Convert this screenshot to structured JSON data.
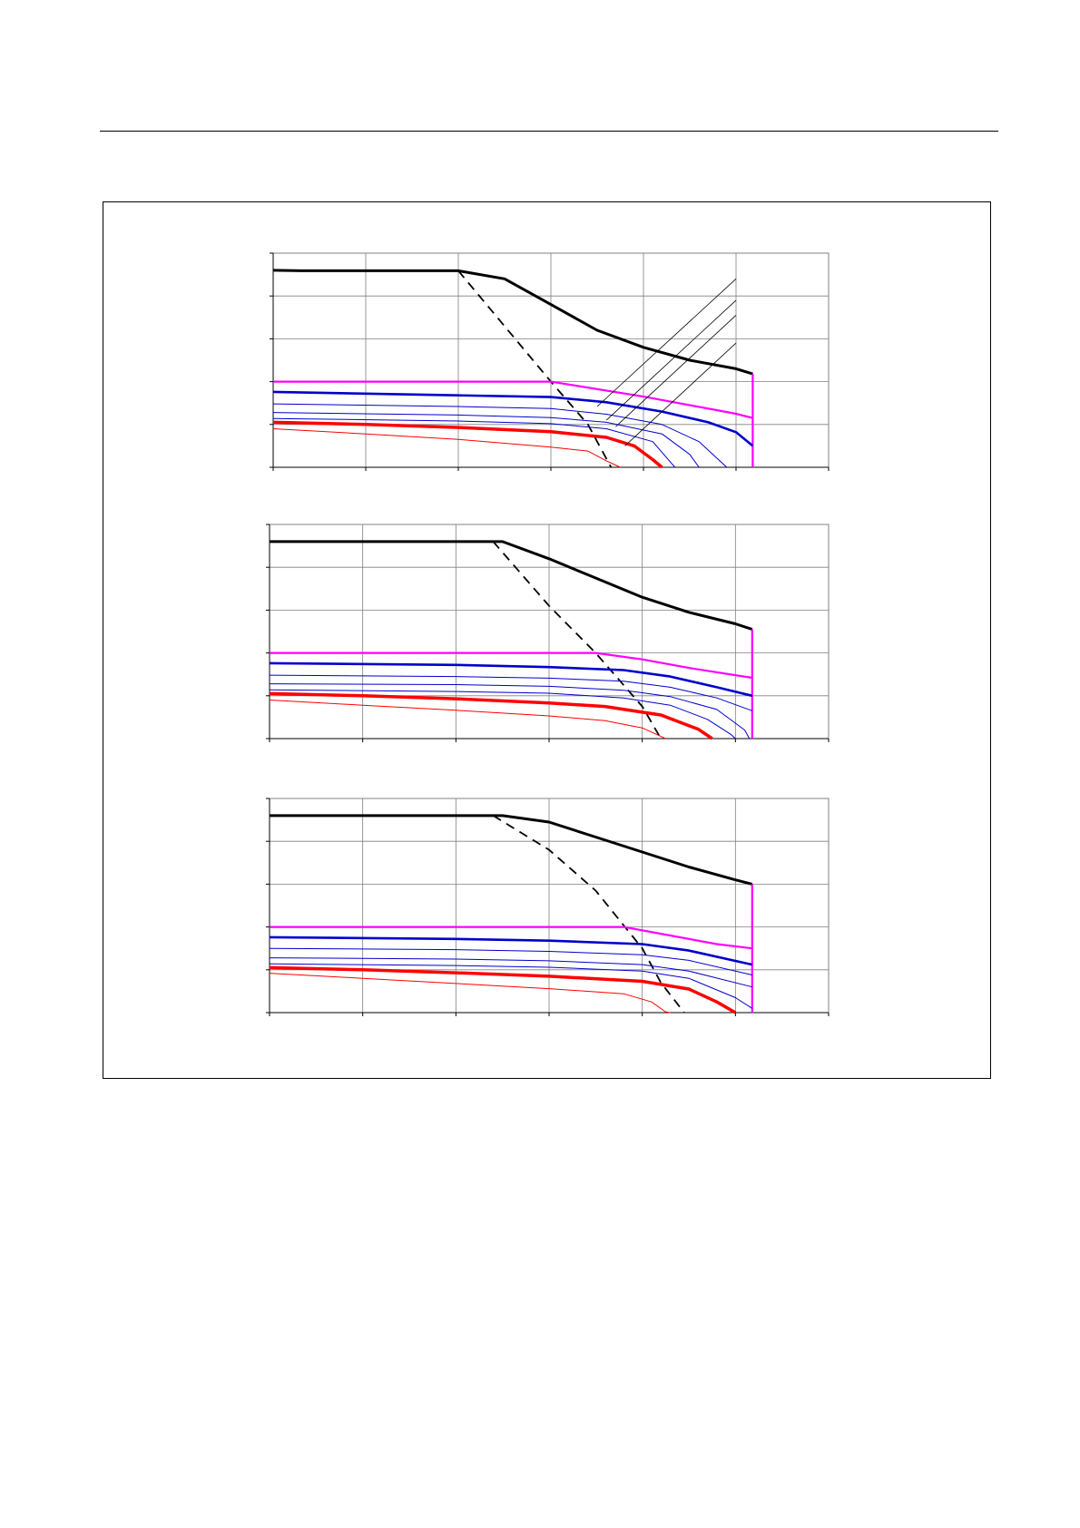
{
  "page": {
    "background": "#ffffff",
    "rule_color": "#000000"
  },
  "colors": {
    "black_curve": "#000000",
    "magenta_curve": "#ff00ff",
    "blue_curve": "#0000cc",
    "red_curve": "#ff0000",
    "grid": "#808080"
  },
  "chart_data": [
    {
      "type": "line",
      "title": "",
      "xlabel": "",
      "ylabel": "",
      "xlim": [
        0,
        6
      ],
      "ylim": [
        0,
        5
      ],
      "grid": true,
      "x_ticks": [
        0,
        1,
        2,
        3,
        4,
        5,
        6
      ],
      "y_ticks": [
        0,
        1,
        2,
        3,
        4,
        5
      ],
      "legend": "none",
      "series": [
        {
          "style": "black-thick",
          "points": [
            [
              0,
              4.6
            ],
            [
              0.3,
              4.59
            ],
            [
              2.0,
              4.59
            ],
            [
              2.5,
              4.4
            ],
            [
              3.0,
              3.8
            ],
            [
              3.5,
              3.2
            ],
            [
              4.0,
              2.8
            ],
            [
              4.5,
              2.5
            ],
            [
              5.0,
              2.3
            ],
            [
              5.18,
              2.18
            ]
          ]
        },
        {
          "style": "black-dashed",
          "points": [
            [
              2.0,
              4.59
            ],
            [
              3.0,
              2.0
            ],
            [
              3.4,
              1.0
            ],
            [
              3.65,
              0.0
            ]
          ]
        },
        {
          "style": "magenta",
          "points": [
            [
              0,
              2.0
            ],
            [
              3.0,
              2.0
            ],
            [
              4.0,
              1.65
            ],
            [
              5.0,
              1.25
            ],
            [
              5.18,
              1.15
            ]
          ]
        },
        {
          "style": "magenta-vertical",
          "points": [
            [
              5.18,
              2.18
            ],
            [
              5.18,
              0.0
            ]
          ]
        },
        {
          "style": "blue-thick",
          "points": [
            [
              0,
              1.76
            ],
            [
              2.0,
              1.68
            ],
            [
              3.0,
              1.64
            ],
            [
              3.6,
              1.52
            ],
            [
              4.2,
              1.3
            ],
            [
              4.7,
              1.05
            ],
            [
              5.0,
              0.82
            ],
            [
              5.18,
              0.5
            ]
          ]
        },
        {
          "style": "blue-thin",
          "points": [
            [
              0,
              1.48
            ],
            [
              2.0,
              1.42
            ],
            [
              3.0,
              1.37
            ],
            [
              3.6,
              1.24
            ],
            [
              4.2,
              1.0
            ],
            [
              4.6,
              0.6
            ],
            [
              4.85,
              0.1
            ],
            [
              4.9,
              0.0
            ]
          ]
        },
        {
          "style": "blue-thin",
          "points": [
            [
              0,
              1.28
            ],
            [
              2.0,
              1.22
            ],
            [
              3.0,
              1.16
            ],
            [
              3.6,
              1.05
            ],
            [
              4.2,
              0.78
            ],
            [
              4.5,
              0.3
            ],
            [
              4.6,
              0.0
            ]
          ]
        },
        {
          "style": "blue-thin",
          "points": [
            [
              0,
              1.14
            ],
            [
              2.0,
              1.08
            ],
            [
              3.0,
              1.02
            ],
            [
              3.6,
              0.9
            ],
            [
              4.1,
              0.6
            ],
            [
              4.3,
              0.1
            ],
            [
              4.34,
              0.0
            ]
          ]
        },
        {
          "style": "red-thick",
          "points": [
            [
              0,
              1.05
            ],
            [
              1.0,
              1.0
            ],
            [
              2.0,
              0.93
            ],
            [
              3.0,
              0.83
            ],
            [
              3.6,
              0.7
            ],
            [
              3.9,
              0.5
            ],
            [
              4.1,
              0.18
            ],
            [
              4.2,
              0.0
            ]
          ]
        },
        {
          "style": "red-thin",
          "points": [
            [
              0,
              0.9
            ],
            [
              1.0,
              0.78
            ],
            [
              2.0,
              0.65
            ],
            [
              3.0,
              0.47
            ],
            [
              3.4,
              0.38
            ],
            [
              3.6,
              0.15
            ],
            [
              3.75,
              0.0
            ]
          ]
        },
        {
          "style": "leader",
          "points": [
            [
              3.5,
              1.42
            ],
            [
              5.0,
              4.4
            ]
          ]
        },
        {
          "style": "leader",
          "points": [
            [
              3.6,
              1.1
            ],
            [
              5.0,
              3.9
            ]
          ]
        },
        {
          "style": "leader",
          "points": [
            [
              3.7,
              0.95
            ],
            [
              5.0,
              3.55
            ]
          ]
        },
        {
          "style": "leader",
          "points": [
            [
              3.8,
              0.5
            ],
            [
              5.0,
              2.9
            ]
          ]
        }
      ]
    },
    {
      "type": "line",
      "title": "",
      "xlabel": "",
      "ylabel": "",
      "xlim": [
        0,
        6
      ],
      "ylim": [
        0,
        5
      ],
      "grid": true,
      "x_ticks": [
        0,
        1,
        2,
        3,
        4,
        5,
        6
      ],
      "y_ticks": [
        0,
        1,
        2,
        3,
        4,
        5
      ],
      "legend": "none",
      "series": [
        {
          "style": "black-thick",
          "points": [
            [
              0,
              4.6
            ],
            [
              2.5,
              4.6
            ],
            [
              3.0,
              4.2
            ],
            [
              3.5,
              3.75
            ],
            [
              4.0,
              3.3
            ],
            [
              4.5,
              2.95
            ],
            [
              5.0,
              2.68
            ],
            [
              5.18,
              2.55
            ]
          ]
        },
        {
          "style": "black-dashed",
          "points": [
            [
              2.4,
              4.6
            ],
            [
              3.0,
              3.1
            ],
            [
              3.5,
              2.0
            ],
            [
              4.0,
              0.75
            ],
            [
              4.2,
              0.0
            ]
          ]
        },
        {
          "style": "magenta",
          "points": [
            [
              0,
              2.0
            ],
            [
              3.5,
              2.0
            ],
            [
              4.0,
              1.85
            ],
            [
              4.5,
              1.65
            ],
            [
              5.18,
              1.42
            ]
          ]
        },
        {
          "style": "magenta-vertical",
          "points": [
            [
              5.18,
              2.55
            ],
            [
              5.18,
              0.0
            ]
          ]
        },
        {
          "style": "blue-thick",
          "points": [
            [
              0,
              1.76
            ],
            [
              2.0,
              1.72
            ],
            [
              3.0,
              1.67
            ],
            [
              3.8,
              1.6
            ],
            [
              4.3,
              1.45
            ],
            [
              4.8,
              1.2
            ],
            [
              5.18,
              1.0
            ]
          ]
        },
        {
          "style": "blue-thin",
          "points": [
            [
              0,
              1.48
            ],
            [
              2.0,
              1.45
            ],
            [
              3.0,
              1.41
            ],
            [
              3.8,
              1.34
            ],
            [
              4.3,
              1.2
            ],
            [
              4.8,
              0.95
            ],
            [
              5.18,
              0.65
            ]
          ]
        },
        {
          "style": "blue-thin",
          "points": [
            [
              0,
              1.28
            ],
            [
              2.0,
              1.26
            ],
            [
              3.0,
              1.22
            ],
            [
              3.8,
              1.13
            ],
            [
              4.3,
              0.98
            ],
            [
              4.8,
              0.68
            ],
            [
              5.1,
              0.2
            ],
            [
              5.15,
              0.0
            ]
          ]
        },
        {
          "style": "blue-thin",
          "points": [
            [
              0,
              1.14
            ],
            [
              2.0,
              1.1
            ],
            [
              3.0,
              1.06
            ],
            [
              3.8,
              0.95
            ],
            [
              4.3,
              0.78
            ],
            [
              4.7,
              0.45
            ],
            [
              4.95,
              0.1
            ],
            [
              5.0,
              0.0
            ]
          ]
        },
        {
          "style": "red-thick",
          "points": [
            [
              0,
              1.05
            ],
            [
              1.0,
              1.0
            ],
            [
              2.0,
              0.93
            ],
            [
              3.0,
              0.83
            ],
            [
              3.6,
              0.75
            ],
            [
              4.2,
              0.55
            ],
            [
              4.6,
              0.22
            ],
            [
              4.75,
              0.0
            ]
          ]
        },
        {
          "style": "red-thin",
          "points": [
            [
              0,
              0.9
            ],
            [
              1.0,
              0.78
            ],
            [
              2.0,
              0.66
            ],
            [
              3.0,
              0.53
            ],
            [
              3.6,
              0.42
            ],
            [
              4.0,
              0.25
            ],
            [
              4.2,
              0.05
            ],
            [
              4.25,
              0.0
            ]
          ]
        }
      ]
    },
    {
      "type": "line",
      "title": "",
      "xlabel": "",
      "ylabel": "",
      "xlim": [
        0,
        6
      ],
      "ylim": [
        0,
        5
      ],
      "grid": true,
      "x_ticks": [
        0,
        1,
        2,
        3,
        4,
        5,
        6
      ],
      "y_ticks": [
        0,
        1,
        2,
        3,
        4,
        5
      ],
      "legend": "none",
      "series": [
        {
          "style": "black-thick",
          "points": [
            [
              0,
              4.6
            ],
            [
              2.5,
              4.6
            ],
            [
              3.0,
              4.45
            ],
            [
              3.5,
              4.1
            ],
            [
              4.0,
              3.75
            ],
            [
              4.5,
              3.4
            ],
            [
              5.0,
              3.1
            ],
            [
              5.18,
              3.0
            ]
          ]
        },
        {
          "style": "black-dashed",
          "points": [
            [
              2.4,
              4.6
            ],
            [
              3.0,
              3.8
            ],
            [
              3.5,
              2.85
            ],
            [
              4.0,
              1.5
            ],
            [
              4.2,
              0.7
            ],
            [
              4.45,
              0.0
            ]
          ]
        },
        {
          "style": "magenta",
          "points": [
            [
              0,
              2.0
            ],
            [
              3.8,
              2.0
            ],
            [
              4.3,
              1.8
            ],
            [
              4.8,
              1.6
            ],
            [
              5.18,
              1.5
            ]
          ]
        },
        {
          "style": "magenta-vertical",
          "points": [
            [
              5.18,
              3.0
            ],
            [
              5.18,
              0.0
            ]
          ]
        },
        {
          "style": "blue-thick",
          "points": [
            [
              0,
              1.76
            ],
            [
              2.0,
              1.72
            ],
            [
              3.0,
              1.68
            ],
            [
              4.0,
              1.6
            ],
            [
              4.5,
              1.45
            ],
            [
              5.18,
              1.12
            ]
          ]
        },
        {
          "style": "blue-thin",
          "points": [
            [
              0,
              1.5
            ],
            [
              2.0,
              1.47
            ],
            [
              3.0,
              1.43
            ],
            [
              4.0,
              1.35
            ],
            [
              4.5,
              1.22
            ],
            [
              5.18,
              0.88
            ]
          ]
        },
        {
          "style": "blue-thin",
          "points": [
            [
              0,
              1.28
            ],
            [
              2.0,
              1.25
            ],
            [
              3.0,
              1.21
            ],
            [
              4.0,
              1.12
            ],
            [
              4.5,
              0.97
            ],
            [
              5.18,
              0.6
            ]
          ]
        },
        {
          "style": "blue-thin",
          "points": [
            [
              0,
              1.14
            ],
            [
              2.0,
              1.1
            ],
            [
              3.0,
              1.06
            ],
            [
              4.0,
              0.97
            ],
            [
              4.5,
              0.8
            ],
            [
              5.0,
              0.35
            ],
            [
              5.18,
              0.1
            ]
          ]
        },
        {
          "style": "red-thick",
          "points": [
            [
              0,
              1.05
            ],
            [
              1.0,
              1.0
            ],
            [
              2.0,
              0.93
            ],
            [
              3.0,
              0.85
            ],
            [
              4.0,
              0.73
            ],
            [
              4.5,
              0.55
            ],
            [
              4.8,
              0.25
            ],
            [
              5.0,
              0.0
            ]
          ]
        },
        {
          "style": "red-thin",
          "points": [
            [
              0,
              0.92
            ],
            [
              1.0,
              0.8
            ],
            [
              2.0,
              0.68
            ],
            [
              3.0,
              0.56
            ],
            [
              3.8,
              0.44
            ],
            [
              4.1,
              0.25
            ],
            [
              4.25,
              0.02
            ],
            [
              4.3,
              0.0
            ]
          ]
        }
      ]
    }
  ]
}
